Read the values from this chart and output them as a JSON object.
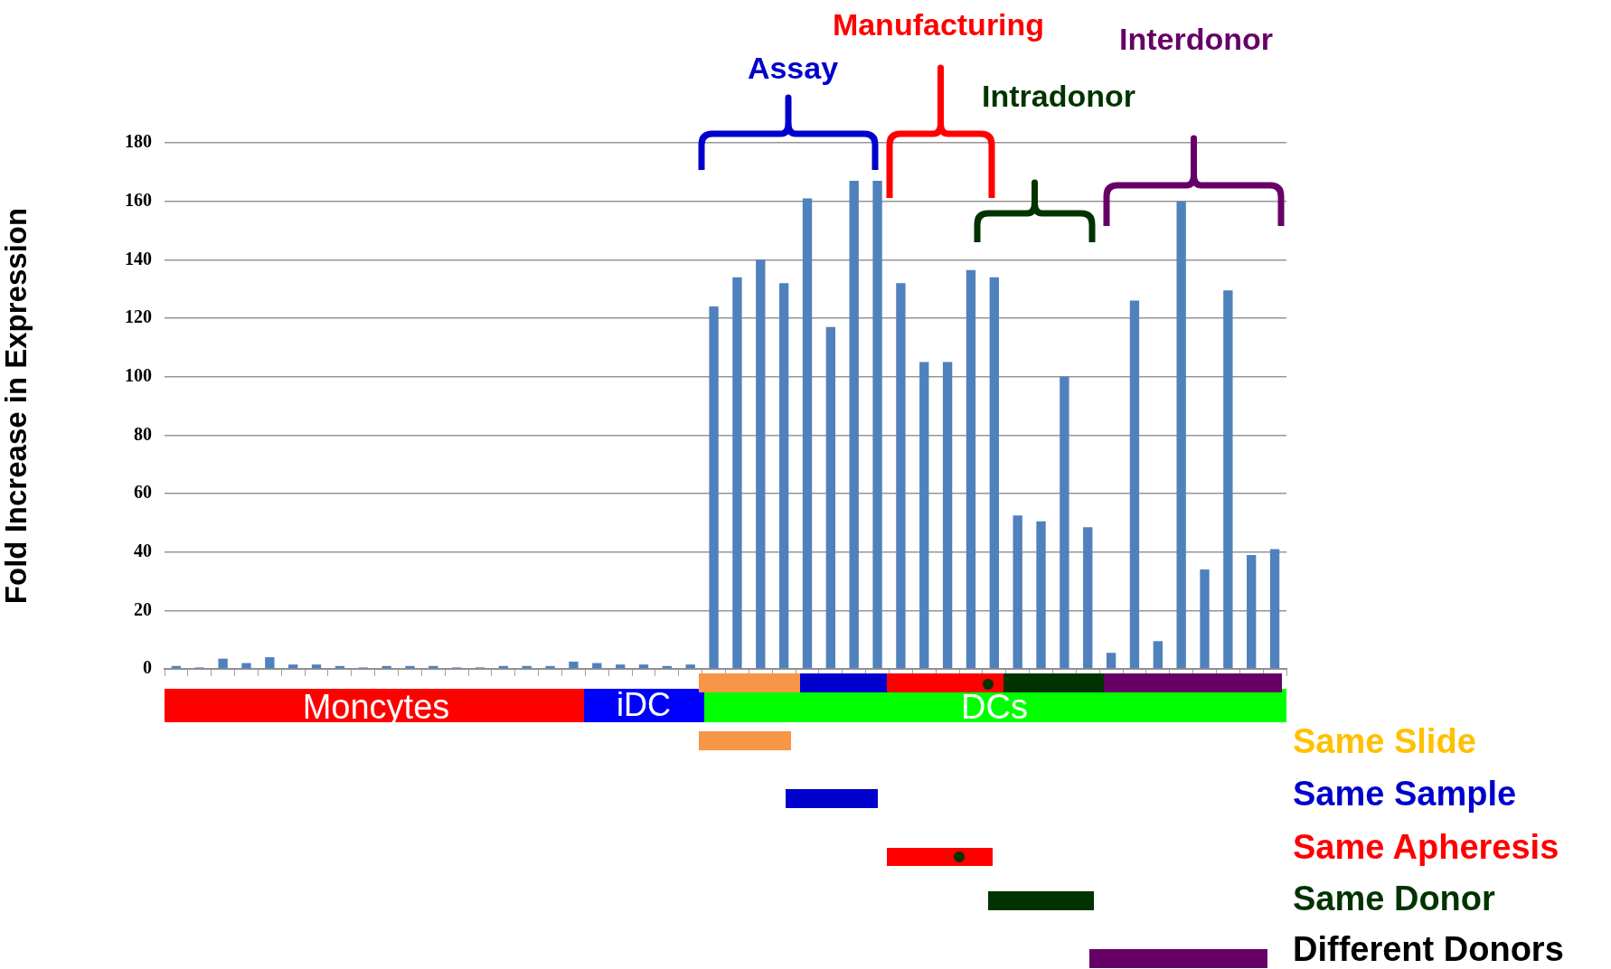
{
  "chart_data": {
    "type": "bar",
    "categories": [
      null,
      null,
      null,
      null,
      null,
      null,
      null,
      null,
      null,
      null,
      null,
      null,
      null,
      null,
      null,
      null,
      null,
      null,
      null,
      null,
      null,
      null,
      null,
      null,
      null,
      null,
      null,
      null,
      null,
      null,
      null,
      null,
      null,
      null,
      null,
      null,
      null,
      null,
      null,
      null,
      null,
      null,
      null,
      null,
      null,
      null,
      null,
      null
    ],
    "values": [
      1,
      0.5,
      3.5,
      2,
      4,
      1.5,
      1.5,
      1,
      0.5,
      1,
      1,
      1,
      0.5,
      0.5,
      1,
      1,
      1,
      2.5,
      2,
      1.5,
      1.5,
      1,
      1.5,
      124,
      134,
      140,
      132,
      161,
      117,
      167,
      167,
      132,
      105,
      105,
      136.5,
      134,
      52.5,
      50.5,
      100,
      48.5,
      5.5,
      126,
      9.5,
      160,
      34,
      129.5,
      39,
      41
    ],
    "color": "#4f81bd",
    "ylabel": "Fold Increase in Expression",
    "ylim": [
      0,
      180
    ],
    "yticks": [
      0,
      20,
      40,
      60,
      80,
      100,
      120,
      140,
      160,
      180
    ],
    "grid": "y",
    "tick_labels": "y",
    "annotations": [
      "Assay",
      "Manufacturing",
      "Intradonor",
      "Interdonor",
      "Moncytes",
      "iDC",
      "DCs",
      "Same Slide",
      "Same Sample",
      "Same Apheresis",
      "Same Donor",
      "Different Donors"
    ]
  }
}
